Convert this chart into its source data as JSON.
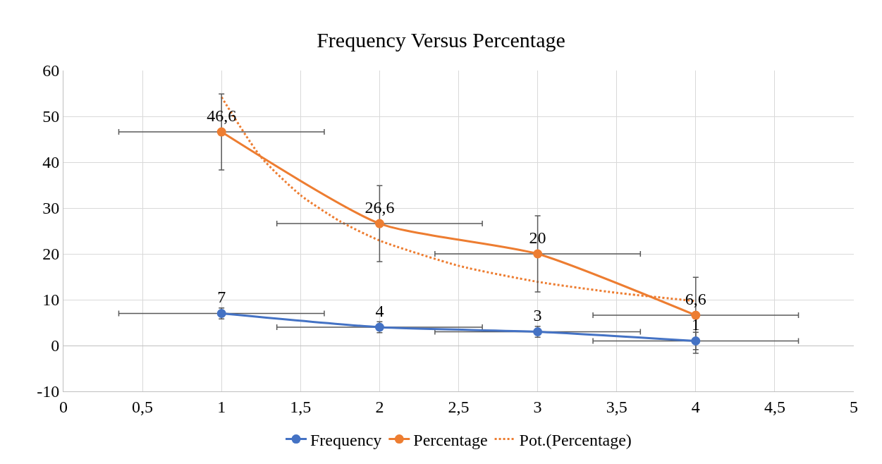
{
  "chart_data": {
    "type": "line",
    "title": "Frequency Versus Percentage",
    "x": [
      1,
      2,
      3,
      4
    ],
    "series": [
      {
        "name": "Frequency",
        "color": "#4472c4",
        "values": [
          7,
          4,
          3,
          1
        ],
        "value_labels": [
          "7",
          "4",
          "3",
          "1"
        ],
        "errors": [
          1.2,
          1.2,
          1.2,
          1.9
        ],
        "xerrors": [
          0.65,
          0.65,
          0.65,
          0.65
        ],
        "marker": "circle",
        "line_style": "solid"
      },
      {
        "name": "Percentage",
        "color": "#ed7d31",
        "values": [
          46.6,
          26.6,
          20,
          6.6
        ],
        "value_labels": [
          "46,6",
          "26,6",
          "20",
          "6,6"
        ],
        "errors": [
          8.3,
          8.3,
          8.3,
          8.3
        ],
        "xerrors": [
          0.65,
          0.65,
          0.65,
          0.65
        ],
        "marker": "circle",
        "line_style": "solid"
      },
      {
        "name": "Pot.(Percentage)",
        "color": "#ed7d31",
        "x": [
          1,
          1.25,
          1.5,
          1.75,
          2,
          2.5,
          3,
          3.5,
          4
        ],
        "values": [
          54.2,
          41.1,
          32.8,
          27.1,
          22.9,
          17.4,
          13.9,
          11.5,
          9.7
        ],
        "marker": "none",
        "line_style": "dotted"
      }
    ],
    "xlim": [
      0,
      5
    ],
    "xticks": [
      0,
      {
        "value": 0.5,
        "label": "0,5"
      },
      1,
      {
        "value": 1.5,
        "label": "1,5"
      },
      2,
      {
        "value": 2.5,
        "label": "2,5"
      },
      3,
      {
        "value": 3.5,
        "label": "3,5"
      },
      4,
      {
        "value": 4.5,
        "label": "4,5"
      },
      5
    ],
    "ylim": [
      -10,
      60
    ],
    "yticks": [
      -10,
      0,
      10,
      20,
      30,
      40,
      50,
      60
    ],
    "grid": true,
    "legend": "bottom"
  }
}
